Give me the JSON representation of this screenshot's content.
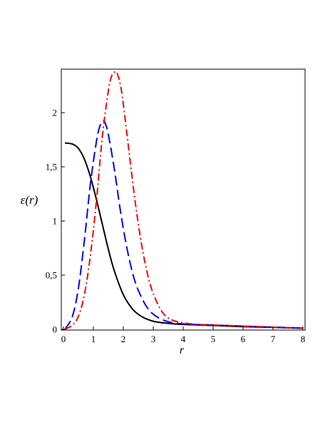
{
  "chart_data": {
    "type": "line",
    "xlabel": "r",
    "ylabel": "ε(r)",
    "xlim": [
      0,
      8
    ],
    "ylim": [
      0,
      2.4
    ],
    "xticks": [
      0,
      1,
      2,
      3,
      4,
      5,
      6,
      7,
      8
    ],
    "xtick_labels": [
      "0",
      "1",
      "2",
      "3",
      "4",
      "5",
      "6",
      "7",
      "8"
    ],
    "yticks": [
      0,
      0.5,
      1,
      1.5,
      2
    ],
    "ytick_labels": [
      "0",
      "0,5",
      "1",
      "1,5",
      "2"
    ],
    "grid": false,
    "series": [
      {
        "color": "#000000",
        "dash": "solid",
        "x": [
          0.05,
          0.3,
          0.5,
          0.7,
          0.9,
          1.1,
          1.3,
          1.5,
          1.7,
          2.0,
          2.3,
          2.6,
          3.0,
          3.5,
          4.0,
          5.0,
          6.0,
          7.0,
          8.0
        ],
        "y": [
          1.72,
          1.71,
          1.67,
          1.57,
          1.41,
          1.2,
          0.97,
          0.74,
          0.54,
          0.32,
          0.19,
          0.12,
          0.075,
          0.055,
          0.045,
          0.035,
          0.025,
          0.018,
          0.01
        ]
      },
      {
        "color": "#0000ff",
        "dash": "dashed",
        "x": [
          0.05,
          0.3,
          0.5,
          0.7,
          0.9,
          1.1,
          1.2,
          1.3,
          1.35,
          1.4,
          1.5,
          1.7,
          1.9,
          2.1,
          2.3,
          2.5,
          2.8,
          3.1,
          3.5,
          4.0,
          5.0,
          6.0,
          7.0,
          8.0
        ],
        "y": [
          0.0,
          0.12,
          0.38,
          0.82,
          1.34,
          1.73,
          1.86,
          1.92,
          1.92,
          1.9,
          1.8,
          1.48,
          1.1,
          0.78,
          0.53,
          0.36,
          0.2,
          0.12,
          0.07,
          0.05,
          0.04,
          0.03,
          0.02,
          0.012
        ]
      },
      {
        "color": "#ff0000",
        "dash": "dashdot",
        "x": [
          0.05,
          0.3,
          0.5,
          0.7,
          0.9,
          1.1,
          1.3,
          1.5,
          1.6,
          1.7,
          1.75,
          1.8,
          1.9,
          2.0,
          2.2,
          2.4,
          2.6,
          2.8,
          3.0,
          3.3,
          3.6,
          4.0,
          4.5,
          5.0,
          6.0,
          7.0,
          8.0
        ],
        "y": [
          0.0,
          0.04,
          0.12,
          0.32,
          0.68,
          1.18,
          1.78,
          2.2,
          2.33,
          2.37,
          2.38,
          2.36,
          2.26,
          2.08,
          1.62,
          1.17,
          0.8,
          0.52,
          0.33,
          0.16,
          0.09,
          0.06,
          0.045,
          0.04,
          0.03,
          0.02,
          0.012
        ]
      }
    ]
  }
}
